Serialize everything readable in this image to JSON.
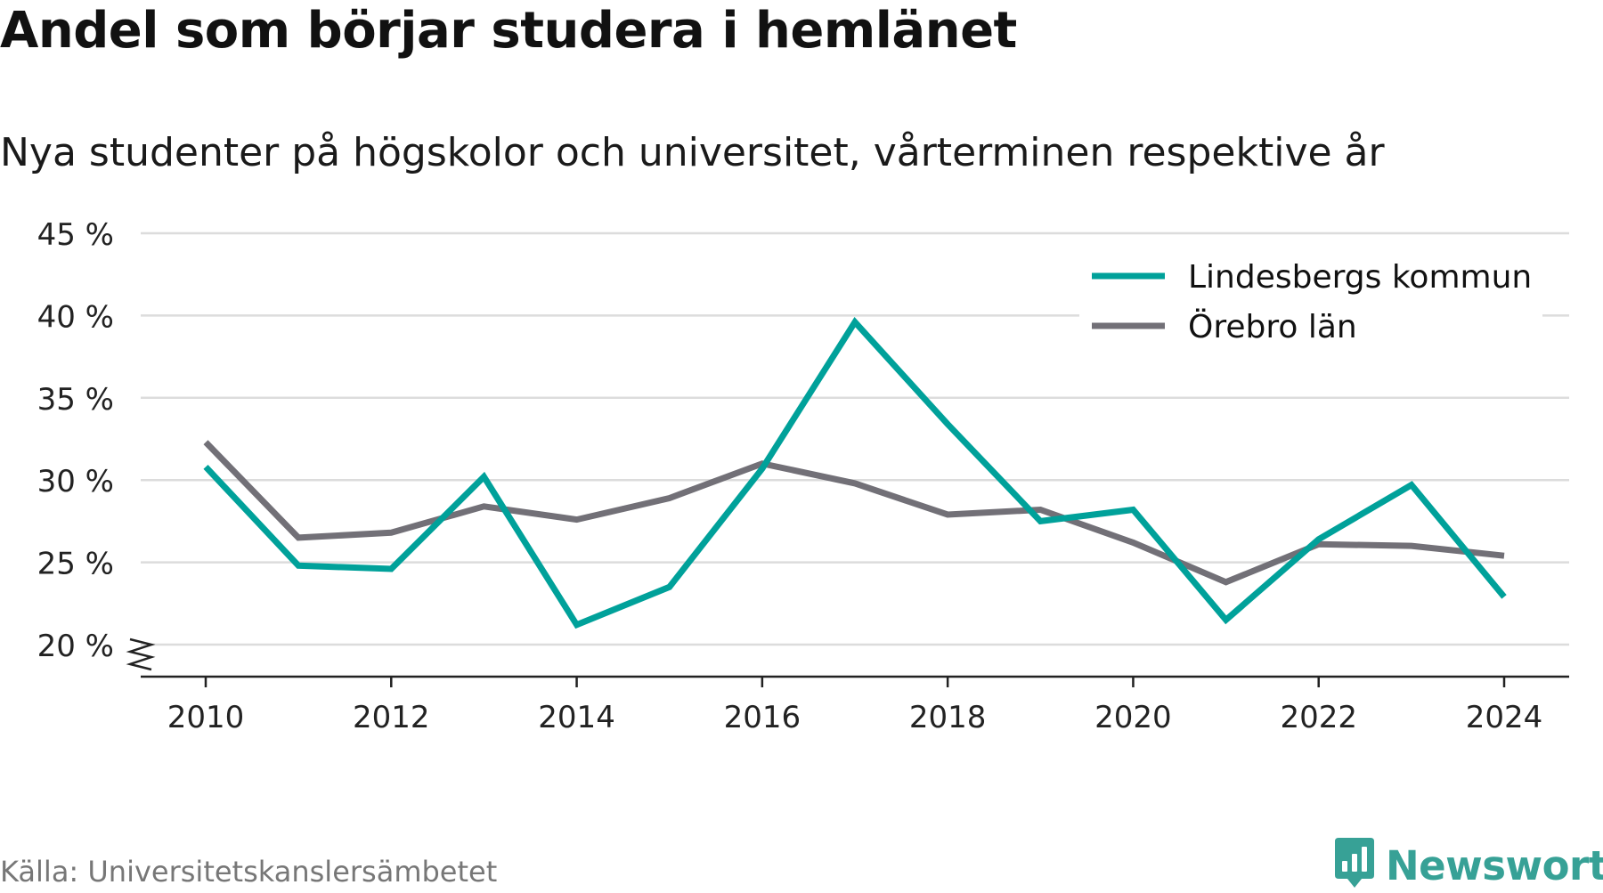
{
  "title": "Andel som börjar studera i hemlänet",
  "subtitle": "Nya studenter på högskolor och universitet, vårterminen respektive år",
  "source": "Källa: Universitetskanslersämbetet",
  "brand": {
    "name": "Newsworthy",
    "icon": "newsworthy-logo-icon",
    "color": "#37a196"
  },
  "chart_data": {
    "type": "line",
    "title": "Andel som börjar studera i hemlänet",
    "subtitle": "Nya studenter på högskolor och universitet, vårterminen respektive år",
    "x": [
      2010,
      2011,
      2012,
      2013,
      2014,
      2015,
      2016,
      2017,
      2018,
      2019,
      2020,
      2021,
      2022,
      2023,
      2024
    ],
    "x_ticks": [
      2010,
      2012,
      2014,
      2016,
      2018,
      2020,
      2022,
      2024
    ],
    "y_ticks": [
      20,
      25,
      30,
      35,
      40,
      45
    ],
    "y_tick_suffix": " %",
    "ylim": [
      18,
      45
    ],
    "y_axis_break": true,
    "grid": "horizontal",
    "legend_position": "top-right",
    "series": [
      {
        "name": "Lindesbergs kommun",
        "color": "#00a19a",
        "values": [
          30.8,
          24.8,
          24.6,
          30.2,
          21.2,
          23.5,
          30.7,
          39.6,
          33.4,
          27.5,
          28.2,
          21.5,
          26.4,
          29.7,
          22.9
        ]
      },
      {
        "name": "Örebro län",
        "color": "#727077",
        "values": [
          32.3,
          26.5,
          26.8,
          28.4,
          27.6,
          28.9,
          31.0,
          29.8,
          27.9,
          28.2,
          26.2,
          23.8,
          26.1,
          26.0,
          25.4
        ]
      }
    ]
  }
}
